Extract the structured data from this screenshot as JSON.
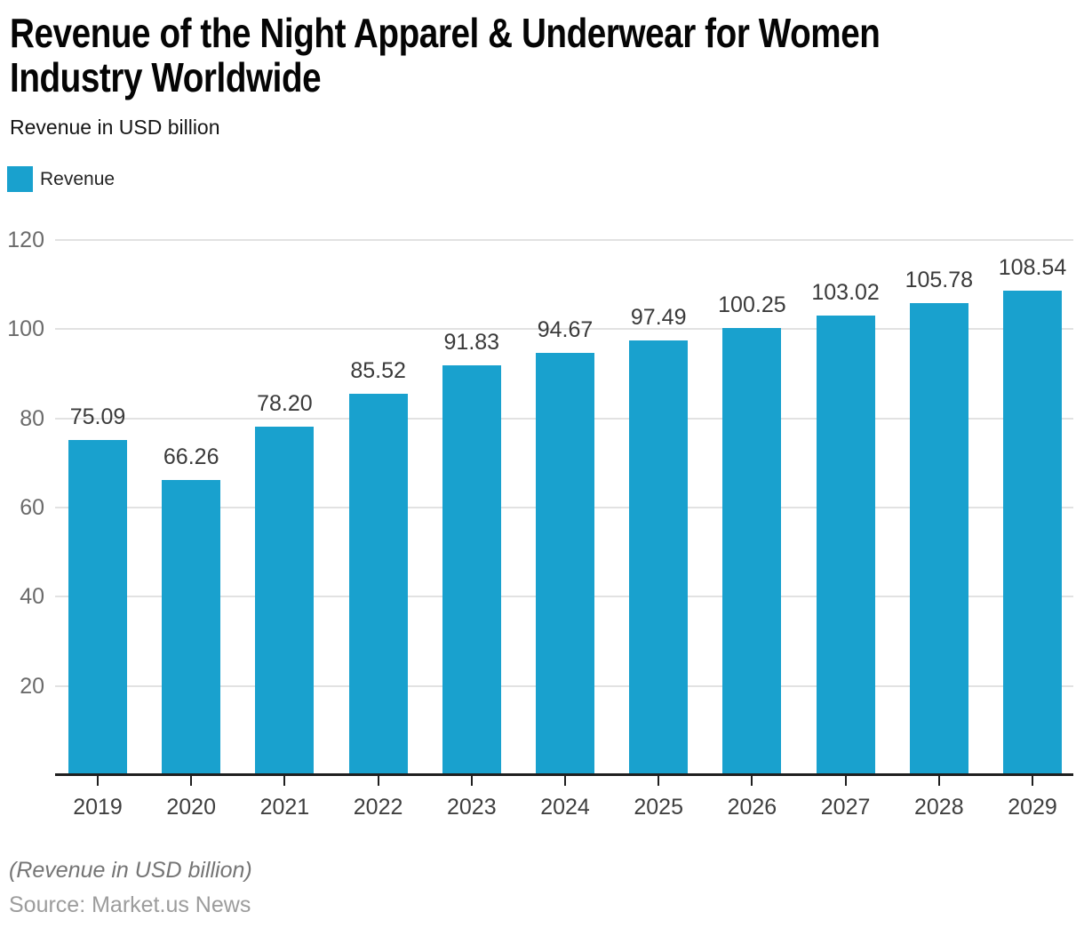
{
  "header": {
    "title_lines": [
      "Revenue of the Night Apparel & Underwear for Women",
      "Industry Worldwide"
    ],
    "subtitle": "Revenue in USD billion"
  },
  "legend": {
    "label": "Revenue"
  },
  "footer": {
    "note": "(Revenue in USD billion)",
    "source": "Source: Market.us News"
  },
  "colors": {
    "bar": "#19a1ce",
    "gridline": "#e2e2e2",
    "axis_line": "#1f1f1f",
    "y_tick_label": "#6b6b6b",
    "x_tick_label": "#3f3f3f",
    "value_label": "#3a3a3a",
    "title": "#050505",
    "note": "#757575",
    "source": "#9c9c9c"
  },
  "chart_data": {
    "type": "bar",
    "title": "Revenue of the Night Apparel & Underwear for Women Industry Worldwide",
    "subtitle": "Revenue in USD billion",
    "xlabel": "",
    "ylabel": "Revenue in USD billion",
    "categories": [
      "2019",
      "2020",
      "2021",
      "2022",
      "2023",
      "2024",
      "2025",
      "2026",
      "2027",
      "2028",
      "2029"
    ],
    "series": [
      {
        "name": "Revenue",
        "values": [
          75.09,
          66.26,
          78.2,
          85.52,
          91.83,
          94.67,
          97.49,
          100.25,
          103.02,
          105.78,
          108.54
        ]
      }
    ],
    "ylim": [
      0,
      120
    ],
    "yticks": [
      20,
      40,
      60,
      80,
      100,
      120
    ],
    "grid": true,
    "legend_position": "top-left",
    "value_labels": true,
    "value_label_decimals": 2
  }
}
